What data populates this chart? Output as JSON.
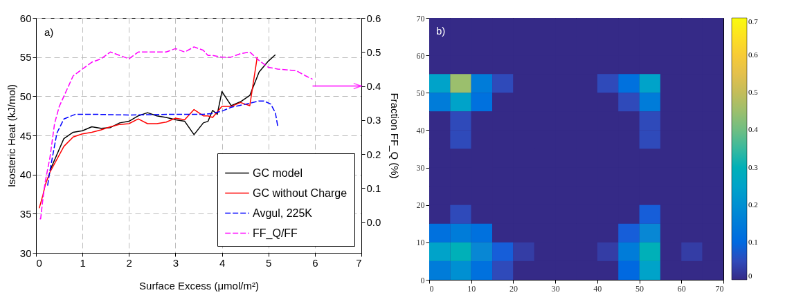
{
  "chart_data": [
    {
      "type": "line",
      "xlabel": "Surface Excess (μmol/m²)",
      "ylabel": "Isosteric Heat (kJ/mol)",
      "y2label": "Fraction FF_Q (%)",
      "xlim": [
        0,
        7
      ],
      "xticks": [
        0,
        1,
        2,
        3,
        4,
        5,
        6,
        7
      ],
      "ylim": [
        30,
        60
      ],
      "yticks": [
        30,
        35,
        40,
        45,
        50,
        55,
        60
      ],
      "y2lim": [
        -0.09,
        0.6
      ],
      "y2ticks": [
        {
          "value": 0,
          "label": "0.0"
        },
        0.1,
        0.2,
        0.3,
        0.4,
        0.5,
        0.6
      ],
      "grid": true,
      "legend": "bottom right",
      "annotations": [
        "a)"
      ],
      "series": [
        {
          "name": "GC model",
          "color": "#000000",
          "line_style": "solid",
          "x": [
            0.3,
            0.6,
            0.8,
            1.0,
            1.2,
            1.4,
            1.6,
            1.8,
            2.0,
            2.2,
            2.4,
            2.6,
            2.8,
            3.0,
            3.2,
            3.4,
            3.6,
            3.7,
            3.8,
            3.9,
            4.0,
            4.2,
            4.4,
            4.6,
            4.8,
            5.0,
            5.15
          ],
          "values": [
            40.5,
            44.6,
            45.4,
            45.6,
            46.1,
            45.9,
            46.0,
            46.6,
            46.8,
            47.5,
            47.9,
            47.5,
            47.3,
            47.0,
            46.8,
            45.1,
            46.6,
            46.8,
            48.2,
            47.7,
            50.6,
            48.8,
            49.3,
            50.1,
            53.1,
            54.5,
            55.3
          ]
        },
        {
          "name": "GC without Charge",
          "color": "#ff0000",
          "line_style": "solid",
          "x": [
            0.07,
            0.15,
            0.2,
            0.3,
            0.6,
            0.8,
            1.0,
            1.2,
            1.4,
            1.6,
            1.8,
            2.0,
            2.2,
            2.4,
            2.6,
            2.8,
            3.0,
            3.2,
            3.4,
            3.6,
            3.7,
            3.8,
            4.0,
            4.2,
            4.4,
            4.6,
            4.76
          ],
          "values": [
            35.7,
            37.4,
            38.7,
            40.3,
            43.6,
            44.8,
            45.2,
            45.4,
            45.7,
            46.1,
            46.4,
            46.5,
            47.1,
            46.5,
            46.5,
            46.7,
            47.2,
            47.0,
            48.3,
            47.5,
            47.5,
            47.3,
            48.7,
            48.7,
            49.2,
            48.8,
            55.0
          ]
        },
        {
          "name": "Avgul, 225K",
          "color": "#0000ff",
          "line_style": "dashed",
          "x": [
            0.25,
            0.3,
            0.45,
            0.6,
            0.85,
            1.2,
            2.0,
            3.0,
            3.6,
            3.8,
            4.0,
            4.2,
            4.6,
            4.8,
            4.9,
            5.05,
            5.15,
            5.2
          ],
          "values": [
            38.6,
            40.5,
            45.3,
            47.1,
            47.7,
            47.7,
            47.6,
            47.7,
            47.7,
            47.8,
            48.1,
            48.6,
            49.1,
            49.4,
            49.4,
            49.0,
            47.9,
            46.2
          ]
        },
        {
          "name": "FF_Q/FF",
          "color": "#ff00ff",
          "line_style": "dashed",
          "axis": "y2",
          "x": [
            0.08,
            0.1,
            0.15,
            0.2,
            0.3,
            0.4,
            0.5,
            0.6,
            0.8,
            1.0,
            1.2,
            1.4,
            1.6,
            1.8,
            2.0,
            2.2,
            2.4,
            2.6,
            2.8,
            3.0,
            3.2,
            3.4,
            3.6,
            3.7,
            3.8,
            4.0,
            4.2,
            4.4,
            4.6,
            4.8,
            5.0,
            5.2,
            5.6,
            5.8,
            5.95
          ],
          "values": [
            0.01,
            0.01,
            0.07,
            0.12,
            0.19,
            0.29,
            0.34,
            0.37,
            0.43,
            0.45,
            0.47,
            0.48,
            0.5,
            0.49,
            0.48,
            0.5,
            0.5,
            0.5,
            0.5,
            0.51,
            0.5,
            0.515,
            0.505,
            0.49,
            0.49,
            0.485,
            0.485,
            0.495,
            0.5,
            0.475,
            0.455,
            0.45,
            0.445,
            0.43,
            0.42
          ]
        }
      ]
    },
    {
      "type": "heatmap",
      "xlim": [
        0,
        70
      ],
      "xticks": [
        0,
        10,
        20,
        30,
        40,
        50,
        60,
        70
      ],
      "ylim": [
        0,
        70
      ],
      "yticks": [
        0,
        10,
        20,
        30,
        40,
        50,
        60,
        70
      ],
      "clim": [
        0,
        0.7
      ],
      "cticks": [
        0,
        0.1,
        0.2,
        0.3,
        0.4,
        0.5,
        0.6,
        0.7
      ],
      "annotations": [
        "b)"
      ],
      "x": [
        2.5,
        7.5,
        12.5,
        17.5,
        22.5,
        27.5,
        32.5,
        37.5,
        42.5,
        47.5,
        52.5,
        57.5,
        62.5,
        67.5
      ],
      "y": [
        67.5,
        62.5,
        57.5,
        52.5,
        47.5,
        42.5,
        37.5,
        32.5,
        27.5,
        22.5,
        17.5,
        12.5,
        7.5,
        2.5
      ],
      "cells": [
        [
          0,
          0,
          0,
          0,
          0,
          0,
          0,
          0,
          0,
          0,
          0,
          0,
          0,
          0
        ],
        [
          0,
          0,
          0,
          0,
          0,
          0,
          0,
          0,
          0,
          0,
          0,
          0,
          0,
          0
        ],
        [
          0,
          0,
          0,
          0,
          0,
          0,
          0,
          0,
          0,
          0,
          0,
          0,
          0,
          0
        ],
        [
          0.25,
          0.45,
          0.15,
          0.05,
          0,
          0,
          0,
          0,
          0.05,
          0.12,
          0.25,
          0,
          0,
          0
        ],
        [
          0.15,
          0.25,
          0.12,
          0,
          0,
          0,
          0,
          0,
          0,
          0.05,
          0.15,
          0,
          0,
          0
        ],
        [
          0,
          0.05,
          0,
          0,
          0,
          0,
          0,
          0,
          0,
          0,
          0.05,
          0,
          0,
          0
        ],
        [
          0,
          0.05,
          0,
          0,
          0,
          0,
          0,
          0,
          0,
          0,
          0.05,
          0,
          0,
          0
        ],
        [
          0,
          0,
          0,
          0,
          0,
          0,
          0,
          0,
          0,
          0,
          0,
          0,
          0,
          0
        ],
        [
          0,
          0,
          0,
          0,
          0,
          0,
          0,
          0,
          0,
          0,
          0,
          0,
          0,
          0
        ],
        [
          0,
          0,
          0,
          0,
          0,
          0,
          0,
          0,
          0,
          0,
          0,
          0,
          0,
          0
        ],
        [
          0,
          0.05,
          0,
          0,
          0,
          0,
          0,
          0,
          0,
          0,
          0.08,
          0,
          0,
          0
        ],
        [
          0.12,
          0.15,
          0.12,
          0,
          0,
          0,
          0,
          0,
          0,
          0.08,
          0.18,
          0,
          0,
          0
        ],
        [
          0.25,
          0.3,
          0.18,
          0.08,
          0.03,
          0,
          0,
          0,
          0.03,
          0.15,
          0.3,
          0,
          0.03,
          0
        ],
        [
          0.15,
          0.2,
          0.12,
          0.05,
          0,
          0,
          0,
          0,
          0,
          0.1,
          0.25,
          0,
          0,
          0
        ]
      ]
    }
  ]
}
